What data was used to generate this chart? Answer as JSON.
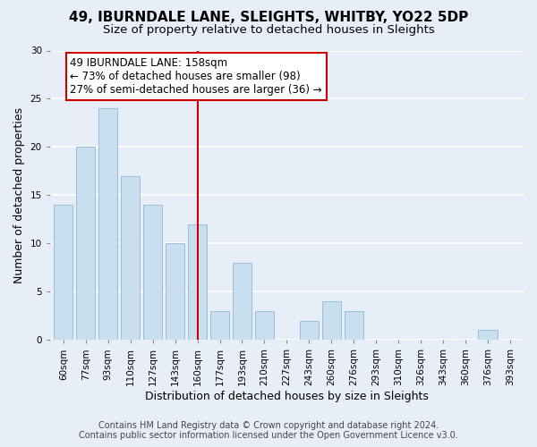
{
  "title": "49, IBURNDALE LANE, SLEIGHTS, WHITBY, YO22 5DP",
  "subtitle": "Size of property relative to detached houses in Sleights",
  "xlabel": "Distribution of detached houses by size in Sleights",
  "ylabel": "Number of detached properties",
  "bar_color": "#c8dff0",
  "bar_edge_color": "#9bbfda",
  "categories": [
    "60sqm",
    "77sqm",
    "93sqm",
    "110sqm",
    "127sqm",
    "143sqm",
    "160sqm",
    "177sqm",
    "193sqm",
    "210sqm",
    "227sqm",
    "243sqm",
    "260sqm",
    "276sqm",
    "293sqm",
    "310sqm",
    "326sqm",
    "343sqm",
    "360sqm",
    "376sqm",
    "393sqm"
  ],
  "values": [
    14,
    20,
    24,
    17,
    14,
    10,
    12,
    3,
    8,
    3,
    0,
    2,
    4,
    3,
    0,
    0,
    0,
    0,
    0,
    1,
    0
  ],
  "ylim": [
    0,
    30
  ],
  "yticks": [
    0,
    5,
    10,
    15,
    20,
    25,
    30
  ],
  "vline_index": 6,
  "vline_color": "#cc0000",
  "annotation_line1": "49 IBURNDALE LANE: 158sqm",
  "annotation_line2": "← 73% of detached houses are smaller (98)",
  "annotation_line3": "27% of semi-detached houses are larger (36) →",
  "annotation_box_color": "#ffffff",
  "annotation_box_edge_color": "#cc0000",
  "footer_line1": "Contains HM Land Registry data © Crown copyright and database right 2024.",
  "footer_line2": "Contains public sector information licensed under the Open Government Licence v3.0.",
  "background_color": "#e8eef8",
  "grid_color": "#ffffff",
  "title_fontsize": 11,
  "subtitle_fontsize": 9.5,
  "axis_label_fontsize": 9,
  "tick_fontsize": 7.5,
  "annotation_fontsize": 8.5,
  "footer_fontsize": 7
}
